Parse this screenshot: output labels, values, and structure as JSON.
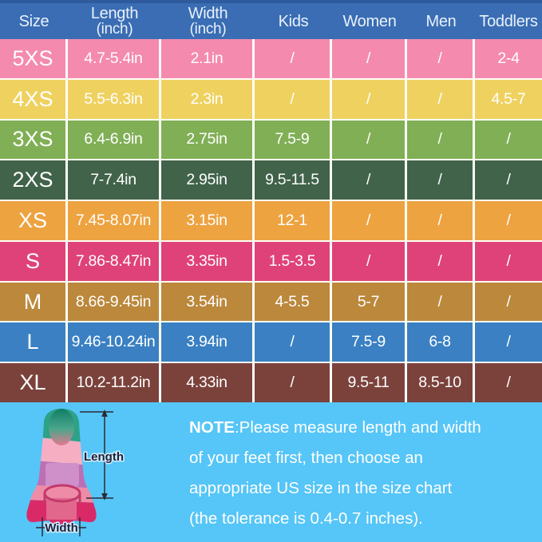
{
  "table": {
    "header_bg": "#3a6db3",
    "header_top_edge": "#2e5b9e",
    "separator_color": "#fdfdf6",
    "keys": [
      "size",
      "length",
      "width",
      "kids",
      "women",
      "men",
      "toddlers"
    ],
    "columns": [
      {
        "key": "size",
        "label": "Size",
        "sub": ""
      },
      {
        "key": "length",
        "label": "Length",
        "sub": "(inch)"
      },
      {
        "key": "width",
        "label": "Width",
        "sub": "(inch)"
      },
      {
        "key": "kids",
        "label": "Kids",
        "sub": ""
      },
      {
        "key": "women",
        "label": "Women",
        "sub": ""
      },
      {
        "key": "men",
        "label": "Men",
        "sub": ""
      },
      {
        "key": "toddlers",
        "label": "Toddlers",
        "sub": ""
      }
    ],
    "rows": [
      {
        "size": "5XS",
        "length": "4.7-5.4in",
        "width": "2.1in",
        "kids": "/",
        "women": "/",
        "men": "/",
        "toddlers": "2-4",
        "color": "#f48aae"
      },
      {
        "size": "4XS",
        "length": "5.5-6.3in",
        "width": "2.3in",
        "kids": "/",
        "women": "/",
        "men": "/",
        "toddlers": "4.5-7",
        "color": "#efd160"
      },
      {
        "size": "3XS",
        "length": "6.4-6.9in",
        "width": "2.75in",
        "kids": "7.5-9",
        "women": "/",
        "men": "/",
        "toddlers": "/",
        "color": "#80af55"
      },
      {
        "size": "2XS",
        "length": "7-7.4in",
        "width": "2.95in",
        "kids": "9.5-11.5",
        "women": "/",
        "men": "/",
        "toddlers": "/",
        "color": "#40634a"
      },
      {
        "size": "XS",
        "length": "7.45-8.07in",
        "width": "3.15in",
        "kids": "12-1",
        "women": "/",
        "men": "/",
        "toddlers": "/",
        "color": "#eda340"
      },
      {
        "size": "S",
        "length": "7.86-8.47in",
        "width": "3.35in",
        "kids": "1.5-3.5",
        "women": "/",
        "men": "/",
        "toddlers": "/",
        "color": "#df4278"
      },
      {
        "size": "M",
        "length": "8.66-9.45in",
        "width": "3.54in",
        "kids": "4-5.5",
        "women": "5-7",
        "men": "/",
        "toddlers": "/",
        "color": "#bb883c"
      },
      {
        "size": "L",
        "length": "9.46-10.24in",
        "width": "3.94in",
        "kids": "/",
        "women": "7.5-9",
        "men": "6-8",
        "toddlers": "/",
        "color": "#3a80c2"
      },
      {
        "size": "XL",
        "length": "10.2-11.2in",
        "width": "4.33in",
        "kids": "/",
        "women": "9.5-11",
        "men": "8.5-10",
        "toddlers": "/",
        "color": "#7b423c"
      }
    ]
  },
  "chart_data": {
    "type": "table",
    "title": "Swim fin size chart",
    "columns": [
      "Size",
      "Length (inch)",
      "Width (inch)",
      "Kids",
      "Women",
      "Men",
      "Toddlers"
    ],
    "rows": [
      [
        "5XS",
        "4.7-5.4in",
        "2.1in",
        "/",
        "/",
        "/",
        "2-4"
      ],
      [
        "4XS",
        "5.5-6.3in",
        "2.3in",
        "/",
        "/",
        "/",
        "4.5-7"
      ],
      [
        "3XS",
        "6.4-6.9in",
        "2.75in",
        "7.5-9",
        "/",
        "/",
        "/"
      ],
      [
        "2XS",
        "7-7.4in",
        "2.95in",
        "9.5-11.5",
        "/",
        "/",
        "/"
      ],
      [
        "XS",
        "7.45-8.07in",
        "3.15in",
        "12-1",
        "/",
        "/",
        "/"
      ],
      [
        "S",
        "7.86-8.47in",
        "3.35in",
        "1.5-3.5",
        "/",
        "/",
        "/"
      ],
      [
        "M",
        "8.66-9.45in",
        "3.54in",
        "4-5.5",
        "5-7",
        "/",
        "/"
      ],
      [
        "L",
        "9.46-10.24in",
        "3.94in",
        "/",
        "7.5-9",
        "6-8",
        "/"
      ],
      [
        "XL",
        "10.2-11.2in",
        "4.33in",
        "/",
        "9.5-11",
        "8.5-10",
        "/"
      ]
    ]
  },
  "note": {
    "bg": "#56c5f7",
    "prefix": "NOTE",
    "lines": [
      ":Please measure length and width",
      "of your feet first, then choose an",
      "appropriate US size in the size chart",
      "(the tolerance is 0.4-0.7 inches)."
    ]
  },
  "fin_diagram": {
    "length_label": "Length",
    "width_label": "Width",
    "colors": {
      "teal": "#2da287",
      "light_pink": "#f6aec3",
      "purple": "#bc6fb5",
      "pink": "#ee8ba7",
      "magenta": "#d92a67"
    }
  }
}
